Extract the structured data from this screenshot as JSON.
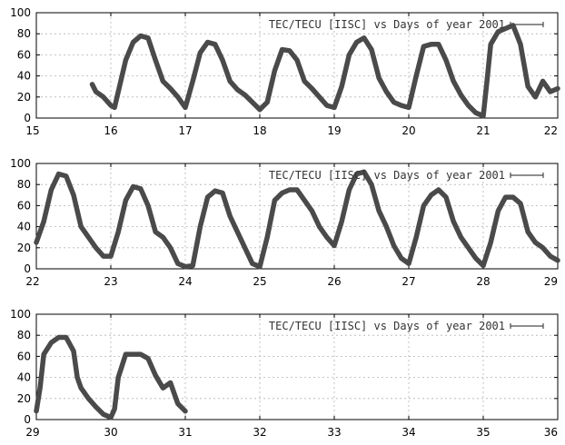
{
  "chart_data": [
    {
      "type": "line",
      "title": "",
      "xlabel": "",
      "ylabel": "",
      "xlim": [
        15,
        22
      ],
      "ylim": [
        0,
        100
      ],
      "xticks": [
        "15",
        "16",
        "17",
        "18",
        "19",
        "20",
        "21",
        "22"
      ],
      "yticks": [
        "0",
        "20",
        "40",
        "60",
        "80",
        "100"
      ],
      "grid": true,
      "legend": {
        "label": "TEC/TECU [IISC] vs Days of year 2001",
        "placement": "top-right"
      },
      "series": [
        {
          "name": "TEC/TECU [IISC] vs Days of year 2001",
          "color": "#4a4a4a",
          "x": [
            15.75,
            15.8,
            15.9,
            16.0,
            16.05,
            16.1,
            16.2,
            16.3,
            16.4,
            16.5,
            16.6,
            16.7,
            16.8,
            16.9,
            17.0,
            17.1,
            17.2,
            17.3,
            17.4,
            17.5,
            17.6,
            17.7,
            17.8,
            17.9,
            18.0,
            18.1,
            18.2,
            18.3,
            18.4,
            18.5,
            18.6,
            18.7,
            18.8,
            18.9,
            19.0,
            19.1,
            19.2,
            19.3,
            19.4,
            19.5,
            19.6,
            19.7,
            19.8,
            19.9,
            20.0,
            20.1,
            20.2,
            20.3,
            20.4,
            20.5,
            20.6,
            20.7,
            20.8,
            20.9,
            21.0,
            21.05,
            21.1,
            21.2,
            21.3,
            21.4,
            21.5,
            21.55,
            21.6,
            21.7,
            21.8,
            21.9,
            22.0
          ],
          "y": [
            32,
            25,
            20,
            12,
            10,
            25,
            55,
            72,
            78,
            76,
            55,
            35,
            28,
            20,
            10,
            35,
            62,
            72,
            70,
            55,
            35,
            27,
            22,
            15,
            8,
            15,
            45,
            65,
            64,
            55,
            35,
            28,
            20,
            12,
            10,
            30,
            60,
            72,
            76,
            65,
            38,
            25,
            15,
            12,
            10,
            40,
            68,
            70,
            70,
            55,
            35,
            22,
            12,
            5,
            2,
            35,
            70,
            82,
            85,
            88,
            70,
            50,
            30,
            20,
            35,
            25,
            28
          ]
        }
      ]
    },
    {
      "type": "line",
      "title": "",
      "xlabel": "",
      "ylabel": "",
      "xlim": [
        22,
        29
      ],
      "ylim": [
        0,
        100
      ],
      "xticks": [
        "22",
        "23",
        "24",
        "25",
        "26",
        "27",
        "28",
        "29"
      ],
      "yticks": [
        "0",
        "20",
        "40",
        "60",
        "80",
        "100"
      ],
      "grid": true,
      "legend": {
        "label": "TEC/TECU [IISC] vs Days of year 2001",
        "placement": "top-right"
      },
      "series": [
        {
          "name": "TEC/TECU [IISC] vs Days of year 2001",
          "color": "#4a4a4a",
          "x": [
            22.0,
            22.1,
            22.2,
            22.3,
            22.4,
            22.5,
            22.6,
            22.7,
            22.8,
            22.9,
            23.0,
            23.1,
            23.2,
            23.3,
            23.4,
            23.5,
            23.6,
            23.7,
            23.8,
            23.9,
            24.0,
            24.1,
            24.2,
            24.3,
            24.4,
            24.5,
            24.6,
            24.7,
            24.8,
            24.9,
            25.0,
            25.1,
            25.2,
            25.3,
            25.4,
            25.5,
            25.6,
            25.7,
            25.8,
            25.9,
            26.0,
            26.1,
            26.2,
            26.3,
            26.4,
            26.5,
            26.6,
            26.7,
            26.8,
            26.9,
            27.0,
            27.1,
            27.2,
            27.3,
            27.4,
            27.5,
            27.6,
            27.7,
            27.8,
            27.9,
            28.0,
            28.1,
            28.2,
            28.3,
            28.4,
            28.5,
            28.6,
            28.7,
            28.8,
            28.9,
            29.0
          ],
          "y": [
            25,
            45,
            75,
            90,
            88,
            70,
            40,
            30,
            20,
            12,
            12,
            35,
            65,
            78,
            76,
            60,
            35,
            30,
            20,
            5,
            2,
            3,
            40,
            68,
            74,
            72,
            50,
            35,
            20,
            5,
            2,
            30,
            65,
            72,
            75,
            75,
            65,
            55,
            40,
            30,
            22,
            45,
            75,
            90,
            92,
            80,
            55,
            40,
            22,
            10,
            5,
            30,
            60,
            70,
            75,
            68,
            45,
            30,
            20,
            10,
            3,
            25,
            55,
            68,
            68,
            62,
            35,
            25,
            20,
            12,
            8
          ]
        }
      ]
    },
    {
      "type": "line",
      "title": "",
      "xlabel": "",
      "ylabel": "",
      "xlim": [
        29,
        36
      ],
      "ylim": [
        0,
        100
      ],
      "xticks": [
        "29",
        "30",
        "31",
        "32",
        "33",
        "34",
        "35",
        "36"
      ],
      "yticks": [
        "0",
        "20",
        "40",
        "60",
        "80",
        "100"
      ],
      "grid": true,
      "legend": {
        "label": "TEC/TECU [IISC] vs Days of year 2001",
        "placement": "top-right"
      },
      "series": [
        {
          "name": "TEC/TECU [IISC] vs Days of year 2001",
          "color": "#4a4a4a",
          "x": [
            29.0,
            29.05,
            29.1,
            29.2,
            29.3,
            29.4,
            29.5,
            29.55,
            29.6,
            29.7,
            29.8,
            29.9,
            30.0,
            30.05,
            30.1,
            30.2,
            30.3,
            30.4,
            30.5,
            30.6,
            30.7,
            30.8,
            30.9,
            31.0
          ],
          "y": [
            8,
            30,
            62,
            73,
            78,
            78,
            65,
            40,
            30,
            20,
            12,
            5,
            2,
            10,
            40,
            62,
            62,
            62,
            58,
            42,
            30,
            35,
            15,
            8
          ]
        }
      ]
    }
  ]
}
